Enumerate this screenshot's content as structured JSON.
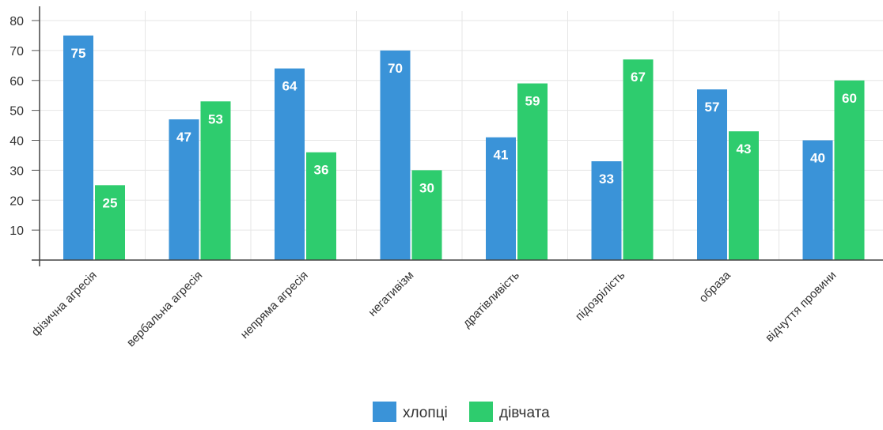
{
  "chart_data": {
    "type": "bar",
    "title": "",
    "xlabel": "",
    "ylabel": "",
    "ylim": [
      0,
      80
    ],
    "yticks": [
      10,
      20,
      30,
      40,
      50,
      60,
      70,
      80
    ],
    "grid": true,
    "legend_position": "bottom-center",
    "categories": [
      "фізична агресія",
      "вербальна агресія",
      "непряма агресія",
      "негативізм",
      "дратівливість",
      "підозрілість",
      "образа",
      "відчуття провини"
    ],
    "series": [
      {
        "name": "хлопці",
        "color": "#3a93d8",
        "values": [
          75,
          47,
          64,
          70,
          41,
          33,
          57,
          40
        ]
      },
      {
        "name": "дівчата",
        "color": "#2ecc6e",
        "values": [
          25,
          53,
          36,
          30,
          59,
          67,
          43,
          60
        ]
      }
    ]
  }
}
